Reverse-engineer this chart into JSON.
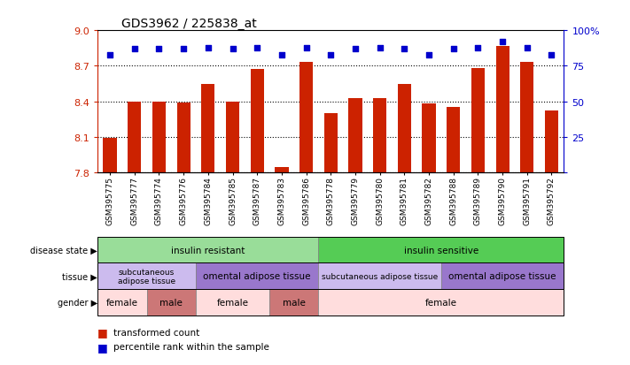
{
  "title": "GDS3962 / 225838_at",
  "samples": [
    "GSM395775",
    "GSM395777",
    "GSM395774",
    "GSM395776",
    "GSM395784",
    "GSM395785",
    "GSM395787",
    "GSM395783",
    "GSM395786",
    "GSM395778",
    "GSM395779",
    "GSM395780",
    "GSM395781",
    "GSM395782",
    "GSM395788",
    "GSM395789",
    "GSM395790",
    "GSM395791",
    "GSM395792"
  ],
  "bar_values": [
    8.09,
    8.4,
    8.4,
    8.39,
    8.55,
    8.4,
    8.67,
    7.85,
    8.73,
    8.3,
    8.43,
    8.43,
    8.55,
    8.38,
    8.35,
    8.68,
    8.87,
    8.73,
    8.32
  ],
  "percentile_values": [
    83,
    87,
    87,
    87,
    88,
    87,
    88,
    83,
    88,
    83,
    87,
    88,
    87,
    83,
    87,
    88,
    92,
    88,
    83
  ],
  "ylim_left": [
    7.8,
    9.0
  ],
  "ylim_right": [
    0,
    100
  ],
  "yticks_left": [
    7.8,
    8.1,
    8.4,
    8.7,
    9.0
  ],
  "yticks_right": [
    0,
    25,
    50,
    75,
    100
  ],
  "bar_color": "#cc2200",
  "dot_color": "#0000cc",
  "disease_state_groups": [
    {
      "label": "insulin resistant",
      "start": 0,
      "end": 9,
      "color": "#99dd99"
    },
    {
      "label": "insulin sensitive",
      "start": 9,
      "end": 19,
      "color": "#55cc55"
    }
  ],
  "tissue_groups": [
    {
      "label": "subcutaneous\nadipose tissue",
      "start": 0,
      "end": 4,
      "color": "#ccbbee"
    },
    {
      "label": "omental adipose tissue",
      "start": 4,
      "end": 9,
      "color": "#9977cc"
    },
    {
      "label": "subcutaneous adipose tissue",
      "start": 9,
      "end": 14,
      "color": "#ccbbee"
    },
    {
      "label": "omental adipose tissue",
      "start": 14,
      "end": 19,
      "color": "#9977cc"
    }
  ],
  "gender_groups": [
    {
      "label": "female",
      "start": 0,
      "end": 2,
      "color": "#ffdddd"
    },
    {
      "label": "male",
      "start": 2,
      "end": 4,
      "color": "#cc7777"
    },
    {
      "label": "female",
      "start": 4,
      "end": 7,
      "color": "#ffdddd"
    },
    {
      "label": "male",
      "start": 7,
      "end": 9,
      "color": "#cc7777"
    },
    {
      "label": "female",
      "start": 9,
      "end": 19,
      "color": "#ffdddd"
    }
  ],
  "row_labels": [
    "disease state",
    "tissue",
    "gender"
  ],
  "legend": [
    {
      "label": "transformed count",
      "color": "#cc2200"
    },
    {
      "label": "percentile rank within the sample",
      "color": "#0000cc"
    }
  ]
}
